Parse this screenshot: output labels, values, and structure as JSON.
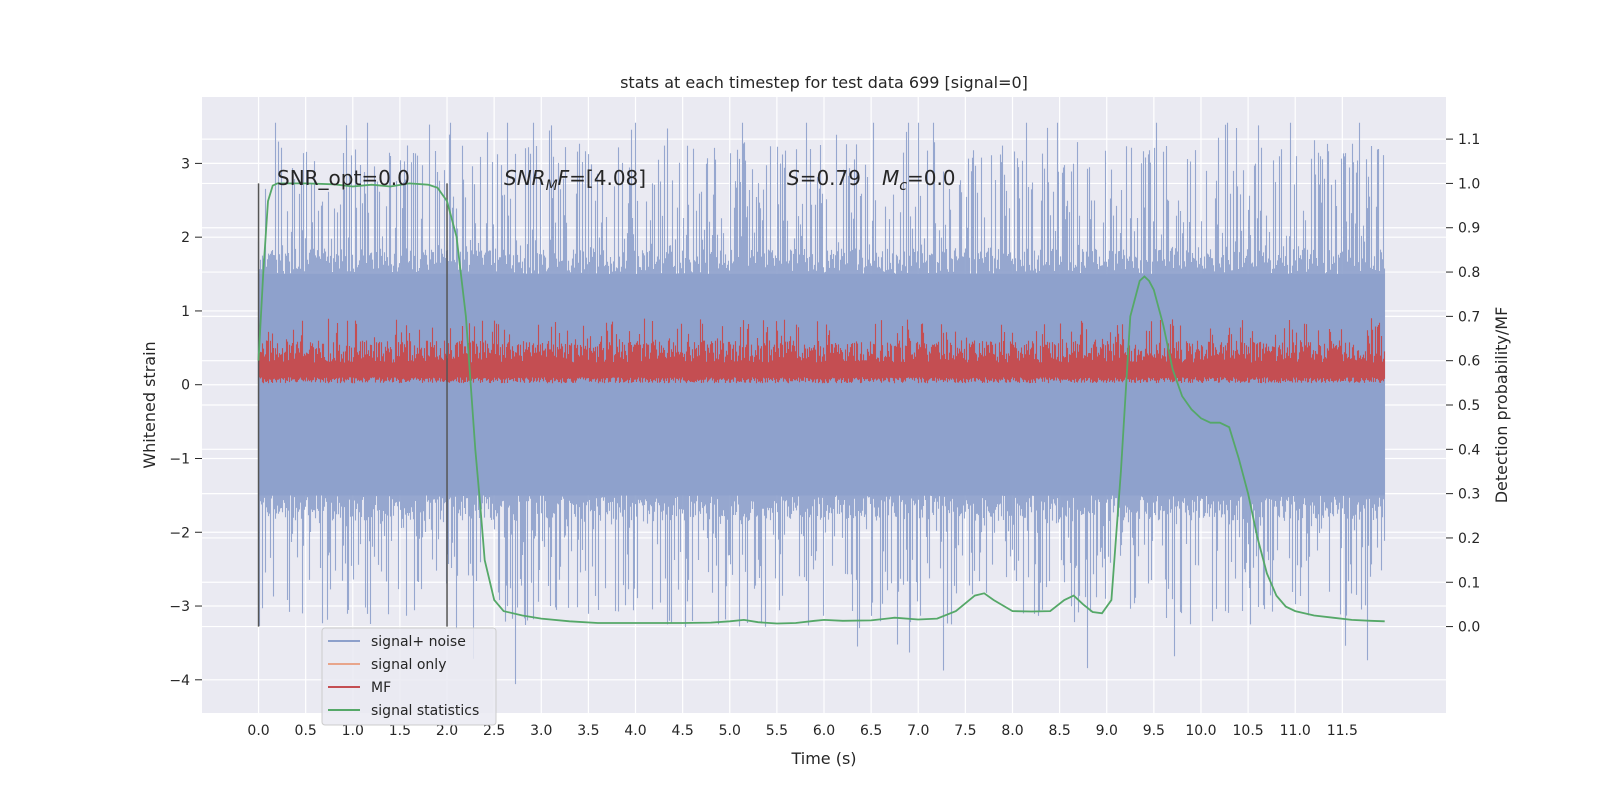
{
  "chart_data": {
    "type": "line",
    "title": "stats at each timestep for test data 699 [signal=0]",
    "xlabel": "Time (s)",
    "ylabel_left": "Whitened strain",
    "ylabel_right": "Detection probability/MF",
    "xlim": [
      -0.6,
      12.6
    ],
    "ylim_left": [
      -4.45,
      3.9
    ],
    "ylim_right": [
      -0.195,
      1.195
    ],
    "x_ticks": [
      "0.0",
      "0.5",
      "1.0",
      "1.5",
      "2.0",
      "2.5",
      "3.0",
      "3.5",
      "4.0",
      "4.5",
      "5.0",
      "5.5",
      "6.0",
      "6.5",
      "7.0",
      "7.5",
      "8.0",
      "8.5",
      "9.0",
      "9.5",
      "10.0",
      "10.5",
      "11.0",
      "11.5"
    ],
    "y_left_ticks": [
      "3",
      "2",
      "1",
      "0",
      "−1",
      "−2",
      "−3",
      "−4"
    ],
    "y_right_ticks": [
      "1.1",
      "1.0",
      "0.9",
      "0.8",
      "0.7",
      "0.6",
      "0.5",
      "0.4",
      "0.3",
      "0.2",
      "0.1",
      "0.0"
    ],
    "grid": true,
    "annotations": {
      "snr_opt": "SNR_opt=0.0",
      "snr_mf_symbol": "SNR",
      "snr_mf_sub": "M",
      "snr_mf_sym2": "F",
      "snr_mf_value": "=[4.08]",
      "s_symbol": "S",
      "s_value": "=0.79",
      "mc_symbol": "M",
      "mc_sub": "c",
      "mc_value": "=0.0"
    },
    "window_markers_x": [
      0.0,
      2.0
    ],
    "series": [
      {
        "name": "signal+ noise",
        "color": "#8da0cb",
        "band_left": [
          -1.5,
          1.5
        ],
        "peak_range_left": [
          -4.1,
          3.55
        ]
      },
      {
        "name": "signal only",
        "color": "#e8a58b",
        "values": []
      },
      {
        "name": "MF",
        "color": "#c44e52",
        "band_left": [
          0.0,
          0.9
        ]
      },
      {
        "name": "signal statistics",
        "color": "#55a868",
        "x": [
          0.0,
          0.05,
          0.1,
          0.15,
          0.2,
          0.3,
          0.5,
          0.8,
          1.0,
          1.2,
          1.4,
          1.6,
          1.8,
          1.9,
          2.0,
          2.1,
          2.2,
          2.25,
          2.3,
          2.35,
          2.4,
          2.5,
          2.6,
          2.8,
          3.0,
          3.3,
          3.6,
          4.0,
          4.5,
          4.8,
          5.0,
          5.15,
          5.3,
          5.5,
          5.7,
          5.9,
          6.0,
          6.2,
          6.5,
          6.75,
          7.0,
          7.2,
          7.4,
          7.6,
          7.7,
          7.8,
          8.0,
          8.2,
          8.4,
          8.55,
          8.65,
          8.75,
          8.85,
          8.95,
          9.05,
          9.15,
          9.25,
          9.35,
          9.4,
          9.45,
          9.5,
          9.6,
          9.7,
          9.8,
          9.9,
          10.0,
          10.1,
          10.2,
          10.3,
          10.4,
          10.5,
          10.6,
          10.7,
          10.8,
          10.9,
          11.0,
          11.2,
          11.4,
          11.6,
          11.8,
          11.95
        ],
        "values": [
          0.6,
          0.8,
          0.96,
          0.995,
          1.0,
          1.0,
          1.0,
          0.998,
          0.993,
          0.997,
          0.993,
          1.0,
          0.997,
          0.99,
          0.96,
          0.88,
          0.7,
          0.55,
          0.4,
          0.28,
          0.15,
          0.06,
          0.035,
          0.025,
          0.018,
          0.012,
          0.008,
          0.008,
          0.008,
          0.009,
          0.012,
          0.015,
          0.01,
          0.007,
          0.008,
          0.013,
          0.015,
          0.013,
          0.014,
          0.02,
          0.016,
          0.018,
          0.035,
          0.07,
          0.075,
          0.06,
          0.035,
          0.034,
          0.035,
          0.06,
          0.07,
          0.05,
          0.033,
          0.03,
          0.06,
          0.35,
          0.7,
          0.78,
          0.79,
          0.78,
          0.76,
          0.68,
          0.58,
          0.52,
          0.49,
          0.47,
          0.46,
          0.46,
          0.45,
          0.38,
          0.3,
          0.2,
          0.12,
          0.07,
          0.045,
          0.035,
          0.025,
          0.02,
          0.015,
          0.013,
          0.012
        ]
      }
    ],
    "legend_placement": "lower-left"
  }
}
